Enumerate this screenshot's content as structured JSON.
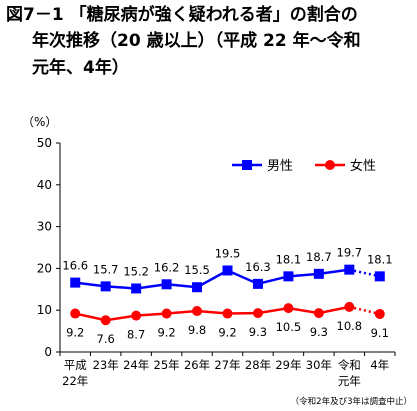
{
  "title_lines": [
    "図7－1 「糖尿病が強く疑われる者」の割合の",
    "年次推移（20 歳以上）（平成 22 年～令和",
    "元年、4年）"
  ],
  "note": "（令和2年及び3年は調査中止）",
  "colors": {
    "male": "#0000ff",
    "female": "#ff0000",
    "axis": "#000000"
  },
  "chart_data": {
    "type": "line",
    "categories": [
      [
        "平成",
        "22年"
      ],
      [
        "23年"
      ],
      [
        "24年"
      ],
      [
        "25年"
      ],
      [
        "26年"
      ],
      [
        "27年"
      ],
      [
        "28年"
      ],
      [
        "29年"
      ],
      [
        "30年"
      ],
      [
        "令和",
        "元年"
      ],
      [
        "4年"
      ]
    ],
    "series": [
      {
        "name": "男性",
        "color": "#0000ff",
        "marker": "square",
        "values": [
          16.6,
          15.7,
          15.2,
          16.2,
          15.5,
          19.5,
          16.3,
          18.1,
          18.7,
          19.7,
          18.1
        ]
      },
      {
        "name": "女性",
        "color": "#ff0000",
        "marker": "circle",
        "values": [
          9.2,
          7.6,
          8.7,
          9.2,
          9.8,
          9.2,
          9.3,
          10.5,
          9.3,
          10.8,
          9.1
        ]
      }
    ],
    "ylabel": "（%）",
    "ylim": [
      0,
      50
    ],
    "yticks": [
      0,
      10,
      20,
      30,
      40,
      50
    ],
    "grid": false,
    "legend": "right",
    "dotted_last_segment": true
  }
}
